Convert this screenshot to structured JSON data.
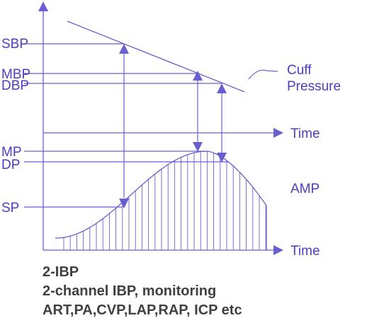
{
  "diagram": {
    "labels": {
      "sbp": "SBP",
      "mbp": "MBP",
      "dbp": "DBP",
      "mp": "MP",
      "dp": "DP",
      "sp": "SP",
      "cuff_line1": "Cuff",
      "cuff_line2": "Pressure",
      "time_upper": "Time",
      "time_lower": "Time",
      "amp": "AMP"
    },
    "colors": {
      "line": "#6a5fd0",
      "label": "#4a3fc0",
      "caption": "#404040"
    }
  },
  "caption": {
    "line1": "2-IBP",
    "line2": "2-channel IBP, monitoring",
    "line3": "ART,PA,CVP,LAP,RAP, ICP etc"
  }
}
